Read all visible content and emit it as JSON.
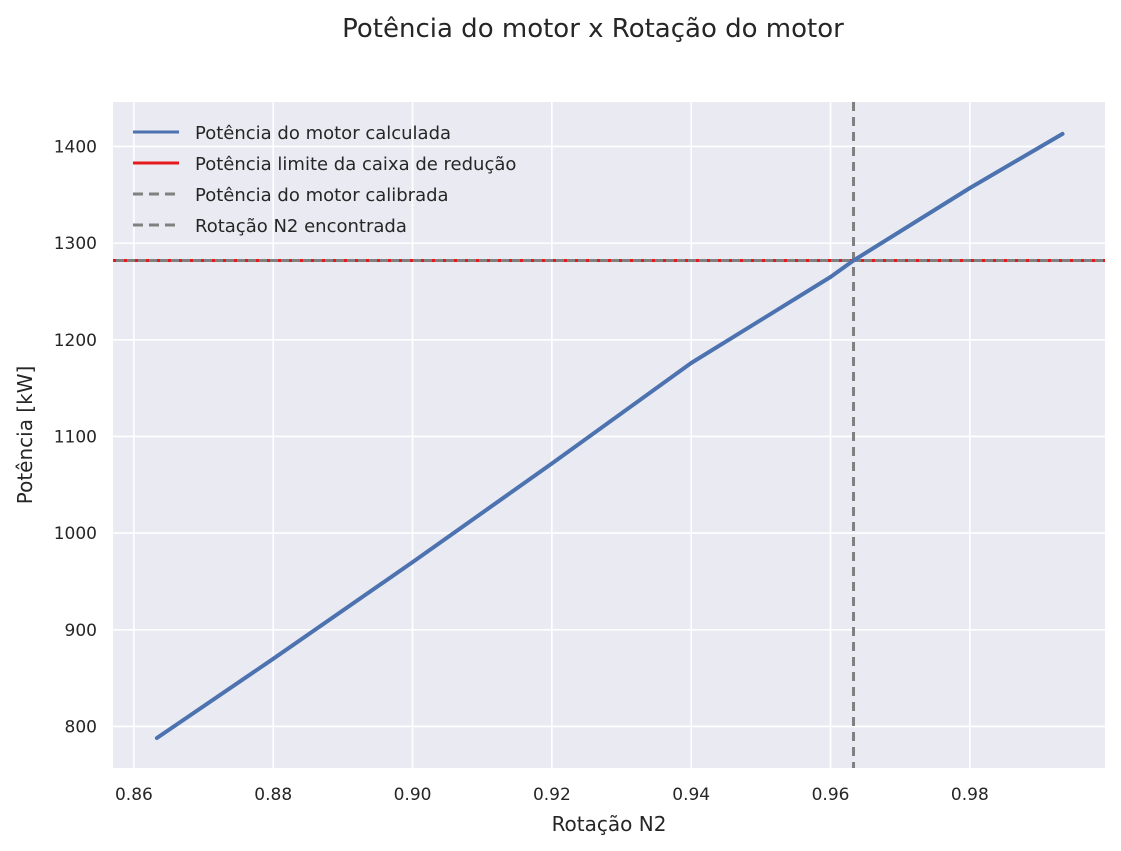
{
  "chart_data": {
    "type": "line",
    "title": "Potência do motor x Rotação do motor",
    "xlabel": "Rotação N2",
    "ylabel": "Potência [kW]",
    "xlim": [
      0.857,
      0.9994
    ],
    "ylim": [
      757,
      1446
    ],
    "xticks": [
      0.86,
      0.88,
      0.9,
      0.92,
      0.94,
      0.96,
      0.98
    ],
    "xtick_labels": [
      "0.86",
      "0.88",
      "0.90",
      "0.92",
      "0.94",
      "0.96",
      "0.98"
    ],
    "yticks": [
      800,
      900,
      1000,
      1100,
      1200,
      1300,
      1400
    ],
    "ytick_labels": [
      "800",
      "900",
      "1000",
      "1100",
      "1200",
      "1300",
      "1400"
    ],
    "grid": true,
    "legend_position": "top-left",
    "series": [
      {
        "name": "Potência do motor calculada",
        "kind": "line",
        "color": "#4c72b0",
        "x": [
          0.8633,
          0.88,
          0.9,
          0.92,
          0.94,
          0.96,
          0.9633,
          0.98,
          0.9933
        ],
        "y": [
          788,
          870,
          970,
          1072,
          1176,
          1265,
          1282,
          1357,
          1413
        ]
      },
      {
        "name": "Potência limite da caixa de redução",
        "kind": "hline",
        "style": "dotted",
        "color": "#e41a1c",
        "y": 1282
      },
      {
        "name": "Potência do motor calibrada",
        "kind": "hline",
        "style": "dashed",
        "color": "#808080",
        "y": 1282
      },
      {
        "name": "Rotação N2 encontrada",
        "kind": "vline",
        "style": "dashed",
        "color": "#808080",
        "x": 0.9633
      }
    ]
  }
}
